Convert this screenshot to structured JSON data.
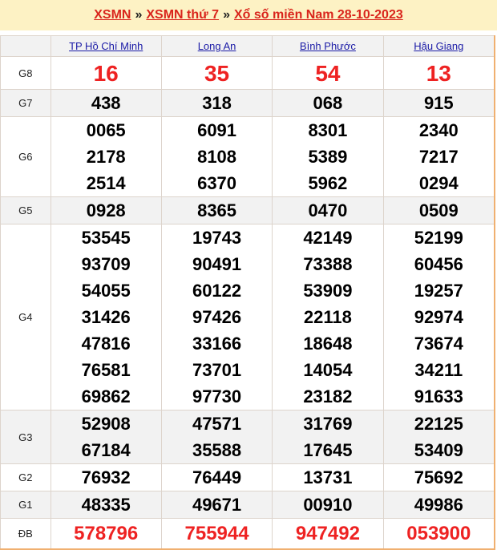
{
  "breadcrumb": [
    "XSMN",
    "XSMN thứ 7",
    "Xổ số miền Nam 28-10-2023"
  ],
  "separator": "»",
  "provinces": [
    "TP Hồ Chí Minh",
    "Long An",
    "Bình Phước",
    "Hậu Giang"
  ],
  "rows": [
    {
      "label": "G8",
      "values": [
        [
          "16"
        ],
        [
          "35"
        ],
        [
          "54"
        ],
        [
          "13"
        ]
      ],
      "red": true
    },
    {
      "label": "G7",
      "values": [
        [
          "438"
        ],
        [
          "318"
        ],
        [
          "068"
        ],
        [
          "915"
        ]
      ]
    },
    {
      "label": "G6",
      "values": [
        [
          "0065",
          "2178",
          "2514"
        ],
        [
          "6091",
          "8108",
          "6370"
        ],
        [
          "8301",
          "5389",
          "5962"
        ],
        [
          "2340",
          "7217",
          "0294"
        ]
      ]
    },
    {
      "label": "G5",
      "values": [
        [
          "0928"
        ],
        [
          "8365"
        ],
        [
          "0470"
        ],
        [
          "0509"
        ]
      ]
    },
    {
      "label": "G4",
      "values": [
        [
          "53545",
          "93709",
          "54055",
          "31426",
          "47816",
          "76581",
          "69862"
        ],
        [
          "19743",
          "90491",
          "60122",
          "97426",
          "33166",
          "73701",
          "97730"
        ],
        [
          "42149",
          "73388",
          "53909",
          "22118",
          "18648",
          "14054",
          "23182"
        ],
        [
          "52199",
          "60456",
          "19257",
          "92974",
          "73674",
          "34211",
          "91633"
        ]
      ]
    },
    {
      "label": "G3",
      "values": [
        [
          "52908",
          "67184"
        ],
        [
          "47571",
          "35588"
        ],
        [
          "31769",
          "17645"
        ],
        [
          "22125",
          "53409"
        ]
      ]
    },
    {
      "label": "G2",
      "values": [
        [
          "76932"
        ],
        [
          "76449"
        ],
        [
          "13731"
        ],
        [
          "75692"
        ]
      ]
    },
    {
      "label": "G1",
      "values": [
        [
          "48335"
        ],
        [
          "49671"
        ],
        [
          "00910"
        ],
        [
          "49986"
        ]
      ]
    },
    {
      "label": "ĐB",
      "values": [
        [
          "578796"
        ],
        [
          "755944"
        ],
        [
          "947492"
        ],
        [
          "053900"
        ]
      ],
      "red": true
    }
  ],
  "colors": {
    "accent": "#d9251c",
    "link": "#1a1aa6",
    "header_bg": "#fdf2c4"
  }
}
